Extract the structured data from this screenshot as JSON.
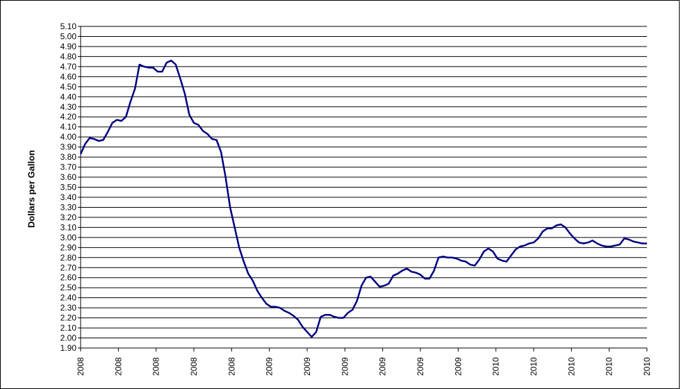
{
  "chart_data": {
    "type": "line",
    "title": "",
    "xlabel": "",
    "ylabel": "Dollars per Gallon",
    "ylim": [
      1.9,
      5.1
    ],
    "y_tick_step": 0.1,
    "grid": "horizontal",
    "legend": "none",
    "x_tick_labels": [
      "2008",
      "2008",
      "2008",
      "2008",
      "2008",
      "2009",
      "2009",
      "2009",
      "2009",
      "2009",
      "2009",
      "2010",
      "2010",
      "2010",
      "2010",
      "2010"
    ],
    "colors": {
      "line": "#000080",
      "grid": "#000000",
      "axis": "#000000"
    },
    "series": [
      {
        "values": [
          3.83,
          3.93,
          3.99,
          3.98,
          3.96,
          3.97,
          4.05,
          4.14,
          4.17,
          4.16,
          4.2,
          4.35,
          4.48,
          4.72,
          4.7,
          4.69,
          4.69,
          4.65,
          4.65,
          4.74,
          4.76,
          4.72,
          4.58,
          4.43,
          4.22,
          4.14,
          4.12,
          4.06,
          4.03,
          3.98,
          3.97,
          3.85,
          3.6,
          3.3,
          3.1,
          2.9,
          2.76,
          2.64,
          2.57,
          2.47,
          2.4,
          2.34,
          2.31,
          2.31,
          2.3,
          2.27,
          2.25,
          2.22,
          2.18,
          2.11,
          2.06,
          2.01,
          2.06,
          2.21,
          2.23,
          2.23,
          2.21,
          2.2,
          2.2,
          2.25,
          2.28,
          2.37,
          2.52,
          2.6,
          2.61,
          2.56,
          2.51,
          2.52,
          2.54,
          2.62,
          2.64,
          2.67,
          2.69,
          2.66,
          2.65,
          2.63,
          2.59,
          2.59,
          2.67,
          2.8,
          2.81,
          2.8,
          2.8,
          2.79,
          2.77,
          2.76,
          2.73,
          2.72,
          2.78,
          2.86,
          2.89,
          2.86,
          2.79,
          2.77,
          2.76,
          2.82,
          2.88,
          2.91,
          2.92,
          2.94,
          2.95,
          2.99,
          3.06,
          3.09,
          3.09,
          3.12,
          3.13,
          3.1,
          3.04,
          2.99,
          2.95,
          2.94,
          2.95,
          2.97,
          2.94,
          2.92,
          2.91,
          2.91,
          2.92,
          2.93,
          2.99,
          2.98,
          2.96,
          2.95,
          2.94,
          2.94
        ]
      }
    ]
  }
}
